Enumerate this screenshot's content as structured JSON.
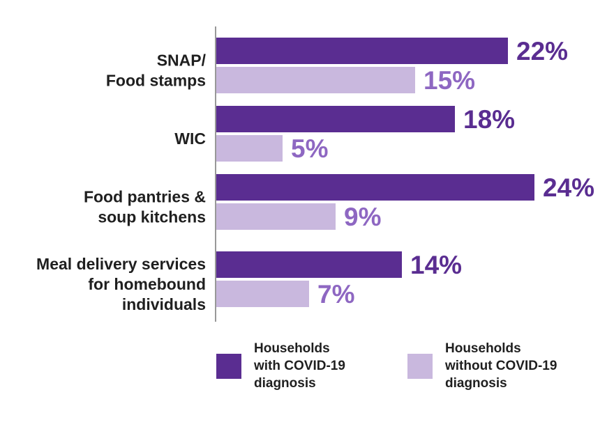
{
  "chart_data": {
    "type": "bar",
    "orientation": "horizontal",
    "categories": [
      "SNAP/\nFood stamps",
      "WIC",
      "Food pantries &\nsoup kitchens",
      "Meal delivery services\nfor homebound\nindividuals"
    ],
    "series": [
      {
        "name": "Households\nwith COVID-19\ndiagnosis",
        "values": [
          22,
          18,
          24,
          14
        ],
        "labels": [
          "22%",
          "18%",
          "24%",
          "14%"
        ],
        "color": "#5a2d91"
      },
      {
        "name": "Households\nwithout COVID-19\ndiagnosis",
        "values": [
          15,
          5,
          9,
          7
        ],
        "labels": [
          "15%",
          "5%",
          "9%",
          "7%"
        ],
        "color": "#c9b8de"
      }
    ],
    "value_label_colors": [
      "#5a2d91",
      "#8e67c2"
    ],
    "xlim": [
      0,
      30
    ],
    "grid": false,
    "legend_position": "bottom"
  }
}
